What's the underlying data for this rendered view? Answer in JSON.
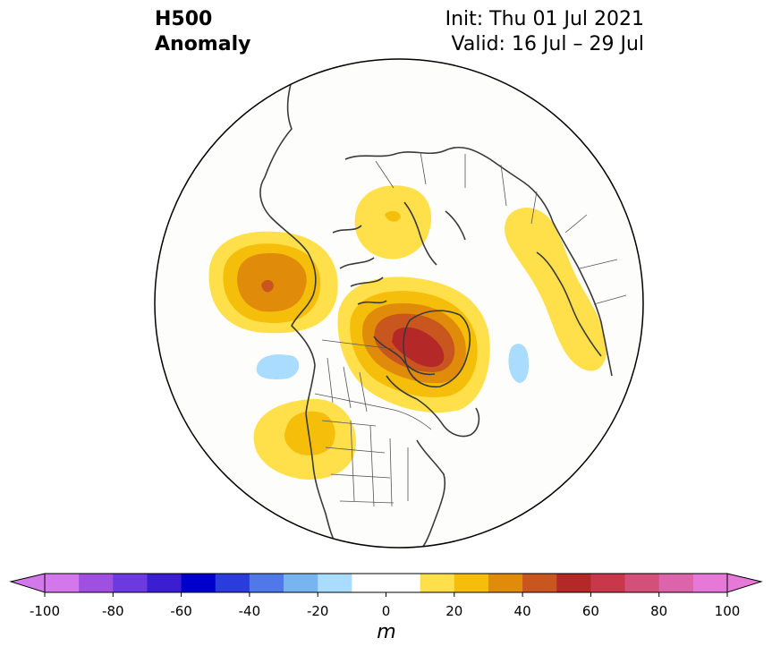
{
  "header": {
    "title_line1": "H500",
    "title_line2": "Anomaly",
    "init_text": "Init: Thu 01 Jul 2021",
    "valid_text": "Valid: 16 Jul – 29 Jul"
  },
  "colorbar": {
    "units": "m",
    "tick_labels": [
      "-100",
      "-80",
      "-60",
      "-40",
      "-20",
      "0",
      "20",
      "40",
      "60",
      "80",
      "100"
    ],
    "levels": [
      -100,
      -90,
      -80,
      -70,
      -60,
      -50,
      -40,
      -30,
      -20,
      -10,
      10,
      20,
      30,
      40,
      50,
      60,
      70,
      80,
      90,
      100
    ],
    "colors": [
      "#d278ea",
      "#a050e0",
      "#6c3ae0",
      "#3c1ed2",
      "#0000cc",
      "#2a3cdc",
      "#5078e8",
      "#78b4f0",
      "#aadcff",
      "#ffffff",
      "#ffffff",
      "#ffe04a",
      "#f5be0a",
      "#e08c0a",
      "#c8561e",
      "#b42828",
      "#c8374a",
      "#d2507a",
      "#dc64aa",
      "#e678d8"
    ],
    "under_color": "#d278ea",
    "over_color": "#e678d8"
  },
  "map": {
    "projection": "north-polar-stereographic",
    "region": "North America / Arctic",
    "anomalies": [
      {
        "region": "Gulf of Alaska / Alaska",
        "peak_m": 40
      },
      {
        "region": "Greenland / Canadian Archipelago",
        "peak_m": 60
      },
      {
        "region": "Eastern Siberia",
        "peak_m": 30
      },
      {
        "region": "Western Russia / Scandinavia",
        "peak_m": 20
      },
      {
        "region": "US Northwest / Great Basin",
        "peak_m": 30
      },
      {
        "region": "North Pacific",
        "peak_m": -10
      },
      {
        "region": "North Atlantic",
        "peak_m": -10
      }
    ]
  }
}
